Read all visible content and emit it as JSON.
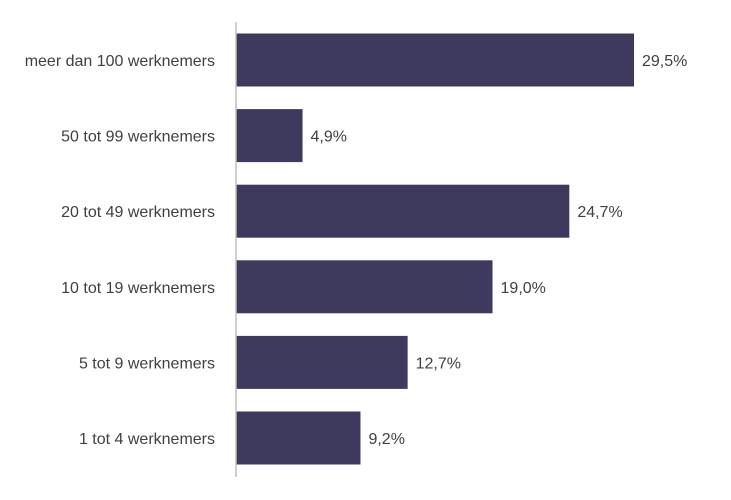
{
  "chart_data": {
    "type": "bar",
    "orientation": "horizontal",
    "categories": [
      "meer dan 100 werknemers",
      "50 tot 99 werknemers",
      "20 tot 49 werknemers",
      "10 tot 19 werknemers",
      "5 tot 9 werknemers",
      "1 tot 4 werknemers"
    ],
    "values": [
      29.5,
      4.9,
      24.7,
      19.0,
      12.7,
      9.2
    ],
    "value_labels": [
      "29,5%",
      "4,9%",
      "24,7%",
      "19,0%",
      "12,7%",
      "9,2%"
    ],
    "xlim": [
      0,
      30
    ],
    "grid": false,
    "legend": "none",
    "bar_color": "#3d3a5e",
    "axis_color": "#bfbfbf",
    "text_color": "#404040"
  }
}
